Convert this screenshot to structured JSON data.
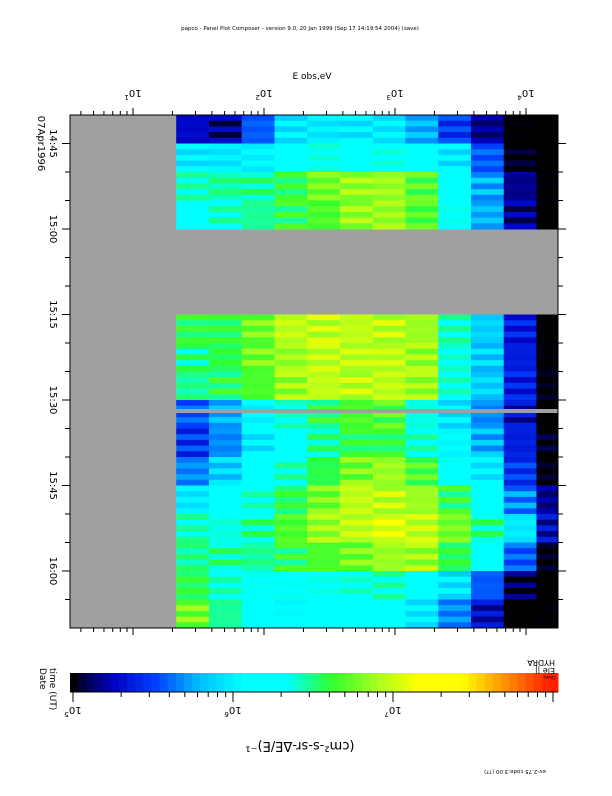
{
  "header": {
    "title": "papco - Panel Plot Composer - version 9.0, 20 Jan 1999 (Sep 17 14:19:54 2004) (save)"
  },
  "chart_data": {
    "type": "heatmap",
    "orientation": "rotated 90 degrees (time runs down the page, energy runs left to right)",
    "xlabel": "E obs,eV",
    "x_scale": "log",
    "xlim": [
      3.3,
      19000
    ],
    "x_ticks": [
      {
        "exp": "1",
        "label": "10"
      },
      {
        "exp": "2",
        "label": "10"
      },
      {
        "exp": "3",
        "label": "10"
      },
      {
        "exp": "4",
        "label": "10"
      }
    ],
    "x_tick_values": [
      10,
      100,
      1000,
      10000
    ],
    "ylabel": "time (UT)",
    "ylabel2": "Date",
    "date": "07Apr1996",
    "time_ticks": [
      "14:45",
      "15:00",
      "15:15",
      "15:30",
      "15:45",
      "16:00"
    ],
    "time_range": [
      "14:40",
      "16:10"
    ],
    "energy_bin_log10_edges_start": 1.33,
    "energy_bin_log10_width": 0.25,
    "time_bin_minutes": 5,
    "no_data_color": "#a0a0a0",
    "log10_flux": [
      [
        5.3,
        5.2,
        5.6,
        6.0,
        6.0,
        6.0,
        6.0,
        5.8,
        5.5,
        5.2,
        4.9,
        4.9
      ],
      [
        6.0,
        6.0,
        6.1,
        6.2,
        6.3,
        6.3,
        6.3,
        6.2,
        6.0,
        5.6,
        5.0,
        4.9
      ],
      [
        6.4,
        6.5,
        6.5,
        6.6,
        6.8,
        6.9,
        6.9,
        6.7,
        6.3,
        5.8,
        5.2,
        4.9
      ],
      [
        6.3,
        6.4,
        6.5,
        6.6,
        6.7,
        6.9,
        6.9,
        6.7,
        6.3,
        5.8,
        5.2,
        4.9
      ],
      null,
      null,
      null,
      [
        6.6,
        6.6,
        6.8,
        7.0,
        7.0,
        7.0,
        7.0,
        6.9,
        6.4,
        5.9,
        5.4,
        4.9
      ],
      [
        6.5,
        6.6,
        6.8,
        6.9,
        7.0,
        7.0,
        7.0,
        6.9,
        6.4,
        5.9,
        5.4,
        4.9
      ],
      [
        6.5,
        6.6,
        6.7,
        6.9,
        7.0,
        7.0,
        7.0,
        6.9,
        6.4,
        5.9,
        5.4,
        5.0
      ],
      [
        5.6,
        5.8,
        6.1,
        6.4,
        6.6,
        6.7,
        6.7,
        6.4,
        6.0,
        5.7,
        5.3,
        4.9
      ],
      [
        5.5,
        5.7,
        6.0,
        6.3,
        6.5,
        6.6,
        6.6,
        6.4,
        6.1,
        5.8,
        5.4,
        5.0
      ],
      [
        5.7,
        5.9,
        6.2,
        6.4,
        6.6,
        6.8,
        6.9,
        6.7,
        6.3,
        6.0,
        5.5,
        5.0
      ],
      [
        6.0,
        6.2,
        6.4,
        6.6,
        6.8,
        7.0,
        7.0,
        6.9,
        6.6,
        6.2,
        5.7,
        5.2
      ],
      [
        6.4,
        6.4,
        6.5,
        6.7,
        6.9,
        7.0,
        7.1,
        7.0,
        6.8,
        6.5,
        6.0,
        5.3
      ],
      [
        6.5,
        6.5,
        6.5,
        6.6,
        6.7,
        6.8,
        6.9,
        6.9,
        6.6,
        6.2,
        5.6,
        5.0
      ],
      [
        6.6,
        6.4,
        6.3,
        6.3,
        6.3,
        6.4,
        6.4,
        6.3,
        6.0,
        5.6,
        5.1,
        4.9
      ],
      [
        6.8,
        6.5,
        6.2,
        6.1,
        6.2,
        6.2,
        6.2,
        6.0,
        5.7,
        5.3,
        4.9,
        4.9
      ]
    ],
    "colorbar": {
      "scale": "log",
      "range": [
        100000,
        100000000
      ],
      "ticks": [
        {
          "label": "10",
          "exp": "5"
        },
        {
          "label": "10",
          "exp": "6"
        },
        {
          "label": "10",
          "exp": "7"
        }
      ],
      "label": "(cm²-s-sr-ΔE/E)⁻¹",
      "colormap": [
        "#000000",
        "#0000c0",
        "#0040ff",
        "#00c0ff",
        "#00ffff",
        "#00ffff",
        "#30ff30",
        "#a0ff20",
        "#ffff00",
        "#ffff00",
        "#ff9000",
        "#ff2000"
      ]
    },
    "panel_label": "HYDRA",
    "panel_sublabel": "Ele ||",
    "panel_small": "Diveo",
    "footnote": "ev-2.75 code:3.00 (??)"
  }
}
